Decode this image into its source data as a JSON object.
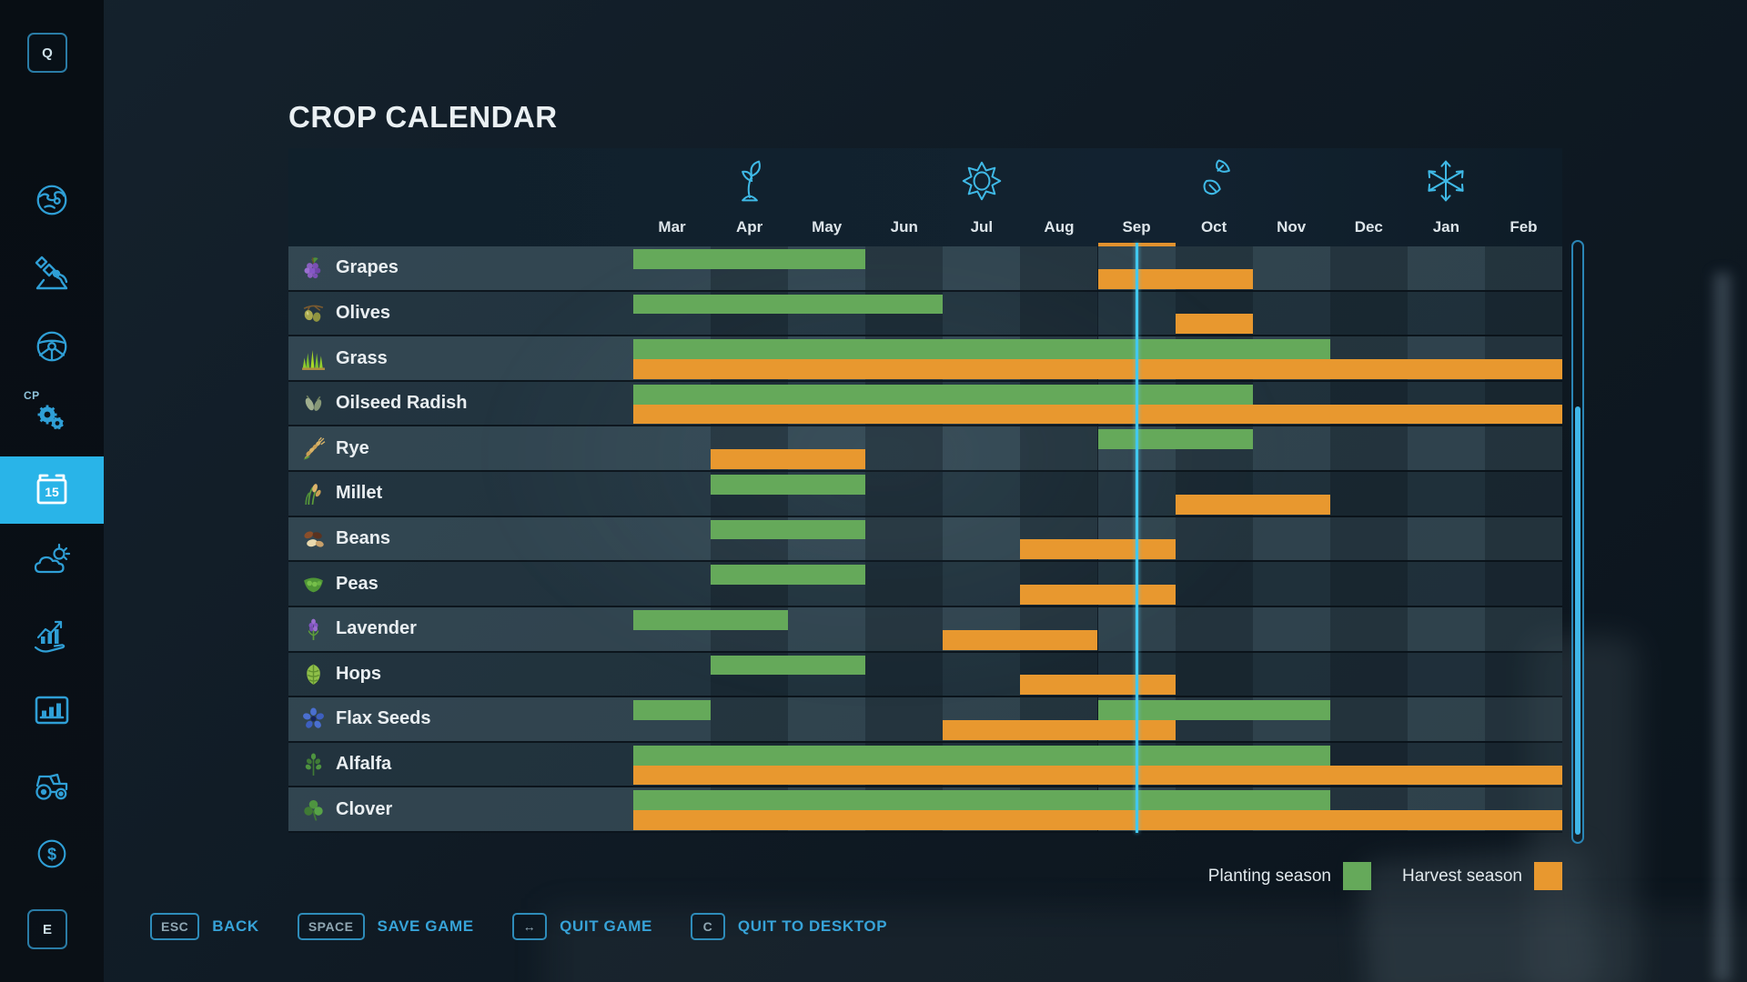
{
  "chart_data": {
    "type": "gantt",
    "title": "CROP CALENDAR",
    "months": [
      "Mar",
      "Apr",
      "May",
      "Jun",
      "Jul",
      "Aug",
      "Sep",
      "Oct",
      "Nov",
      "Dec",
      "Jan",
      "Feb"
    ],
    "seasons": [
      {
        "icon": "spring-icon",
        "month": "Apr"
      },
      {
        "icon": "summer-icon",
        "month": "Jul"
      },
      {
        "icon": "autumn-icon",
        "month": "Oct"
      },
      {
        "icon": "winter-icon",
        "month": "Jan"
      }
    ],
    "current_month": "Sep",
    "current_position_months": 6.5,
    "colors": {
      "planting": "#65a95a",
      "harvest": "#e8982f",
      "current_line": "#41c8ef",
      "month_underline": "#e2922e"
    },
    "legend": [
      {
        "key": "planting",
        "label": "Planting season",
        "color": "#65a95a"
      },
      {
        "key": "harvest",
        "label": "Harvest season",
        "color": "#e8982f"
      }
    ],
    "crops": [
      {
        "name": "Grapes",
        "icon": "grapes-icon",
        "planting": [
          [
            "Mar",
            "May"
          ]
        ],
        "harvest": [
          [
            "Sep",
            "Oct"
          ]
        ]
      },
      {
        "name": "Olives",
        "icon": "olives-icon",
        "planting": [
          [
            "Mar",
            "Jun"
          ]
        ],
        "harvest": [
          [
            "Oct",
            "Oct"
          ]
        ]
      },
      {
        "name": "Grass",
        "icon": "grass-icon",
        "planting": [
          [
            "Mar",
            "Nov"
          ]
        ],
        "harvest": [
          [
            "Mar",
            "Feb"
          ]
        ]
      },
      {
        "name": "Oilseed Radish",
        "icon": "oilseed-radish-icon",
        "planting": [
          [
            "Mar",
            "Oct"
          ]
        ],
        "harvest": [
          [
            "Mar",
            "Feb"
          ]
        ]
      },
      {
        "name": "Rye",
        "icon": "rye-icon",
        "planting": [
          [
            "Sep",
            "Oct"
          ]
        ],
        "harvest": [
          [
            "Apr",
            "May"
          ]
        ]
      },
      {
        "name": "Millet",
        "icon": "millet-icon",
        "planting": [
          [
            "Apr",
            "May"
          ]
        ],
        "harvest": [
          [
            "Oct",
            "Nov"
          ]
        ]
      },
      {
        "name": "Beans",
        "icon": "beans-icon",
        "planting": [
          [
            "Apr",
            "May"
          ]
        ],
        "harvest": [
          [
            "Aug",
            "Sep"
          ]
        ]
      },
      {
        "name": "Peas",
        "icon": "peas-icon",
        "planting": [
          [
            "Apr",
            "May"
          ]
        ],
        "harvest": [
          [
            "Aug",
            "Sep"
          ]
        ]
      },
      {
        "name": "Lavender",
        "icon": "lavender-icon",
        "planting": [
          [
            "Mar",
            "Apr"
          ]
        ],
        "harvest": [
          [
            "Jul",
            "Aug"
          ]
        ]
      },
      {
        "name": "Hops",
        "icon": "hops-icon",
        "planting": [
          [
            "Apr",
            "May"
          ]
        ],
        "harvest": [
          [
            "Aug",
            "Sep"
          ]
        ]
      },
      {
        "name": "Flax Seeds",
        "icon": "flax-seeds-icon",
        "planting": [
          [
            "Mar",
            "Mar"
          ],
          [
            "Sep",
            "Nov"
          ]
        ],
        "harvest": [
          [
            "Jul",
            "Sep"
          ]
        ]
      },
      {
        "name": "Alfalfa",
        "icon": "alfalfa-icon",
        "planting": [
          [
            "Mar",
            "Nov"
          ]
        ],
        "harvest": [
          [
            "Mar",
            "Feb"
          ]
        ]
      },
      {
        "name": "Clover",
        "icon": "clover-icon",
        "planting": [
          [
            "Mar",
            "Nov"
          ]
        ],
        "harvest": [
          [
            "Mar",
            "Feb"
          ]
        ]
      }
    ]
  },
  "sidebar": {
    "top_key": "Q",
    "bottom_key": "E",
    "cp_label": "CP",
    "calendar_day": "15",
    "items": [
      {
        "id": "map",
        "icon": "globe-icon"
      },
      {
        "id": "precision-farming",
        "icon": "satellite-icon"
      },
      {
        "id": "vehicles",
        "icon": "steering-wheel-icon"
      },
      {
        "id": "courseplay",
        "icon": "gears-icon",
        "badge": "CP"
      },
      {
        "id": "crop-calendar",
        "icon": "calendar-icon",
        "active": true
      },
      {
        "id": "weather",
        "icon": "weather-icon"
      },
      {
        "id": "prices",
        "icon": "hand-chart-icon"
      },
      {
        "id": "statistics",
        "icon": "bar-chart-icon"
      },
      {
        "id": "garage",
        "icon": "tractor-icon"
      },
      {
        "id": "finances",
        "icon": "dollar-icon"
      }
    ]
  },
  "footer": {
    "buttons": [
      {
        "key": "ESC",
        "label": "BACK"
      },
      {
        "key": "SPACE",
        "label": "SAVE GAME"
      },
      {
        "key": "↔",
        "label": "QUIT GAME"
      },
      {
        "key": "C",
        "label": "QUIT TO DESKTOP"
      }
    ]
  }
}
